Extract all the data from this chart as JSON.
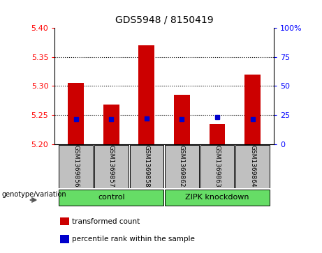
{
  "title": "GDS5948 / 8150419",
  "samples": [
    "GSM1369856",
    "GSM1369857",
    "GSM1369858",
    "GSM1369862",
    "GSM1369863",
    "GSM1369864"
  ],
  "bar_values": [
    5.305,
    5.268,
    5.37,
    5.285,
    5.235,
    5.32
  ],
  "blue_values": [
    5.243,
    5.243,
    5.244,
    5.243,
    5.247,
    5.243
  ],
  "baseline": 5.2,
  "ylim": [
    5.2,
    5.4
  ],
  "yticks_left": [
    5.2,
    5.25,
    5.3,
    5.35,
    5.4
  ],
  "yticks_right": [
    0,
    25,
    50,
    75,
    100
  ],
  "groups": [
    {
      "label": "control",
      "indices": [
        0,
        1,
        2
      ],
      "color": "#66DD66"
    },
    {
      "label": "ZIPK knockdown",
      "indices": [
        3,
        4,
        5
      ],
      "color": "#66DD66"
    }
  ],
  "bar_color": "#CC0000",
  "blue_color": "#0000CC",
  "label_box_color": "#C0C0C0",
  "genotype_label": "genotype/variation",
  "legend_items": [
    {
      "color": "#CC0000",
      "label": "transformed count"
    },
    {
      "color": "#0000CC",
      "label": "percentile rank within the sample"
    }
  ]
}
